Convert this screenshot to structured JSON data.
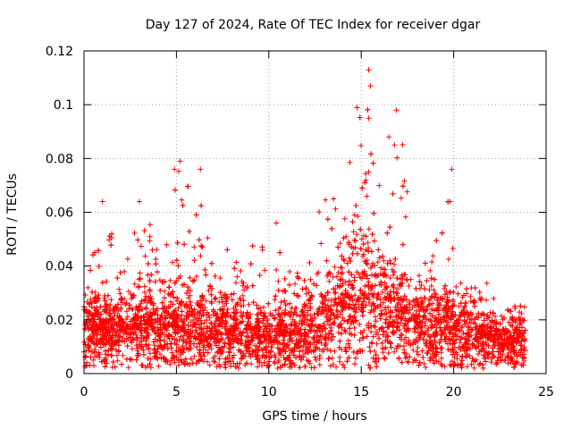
{
  "chart_data": {
    "type": "scatter",
    "title": "Day 127 of 2024, Rate Of TEC Index for receiver dgar",
    "xlabel": "GPS time / hours",
    "ylabel": "ROTI / TECUs",
    "xlim": [
      0,
      25
    ],
    "ylim": [
      0,
      0.12
    ],
    "x_ticks": [
      0,
      5,
      10,
      15,
      20,
      25
    ],
    "x_tick_labels": [
      "0",
      "5",
      "10",
      "15",
      "20",
      "25"
    ],
    "y_ticks": [
      0,
      0.02,
      0.04,
      0.06,
      0.08,
      0.1,
      0.12
    ],
    "y_tick_labels": [
      "0",
      "0.02",
      "0.04",
      "0.06",
      "0.08",
      "0.1",
      "0.12"
    ],
    "grid": true,
    "marker": "plus",
    "color": "#ff0000",
    "data_range_x": [
      0,
      23.9
    ],
    "envelope": {
      "description": "approximate upper/typical ROTI by hour",
      "x": [
        0,
        1,
        2,
        3,
        4,
        5,
        6,
        7,
        8,
        9,
        10,
        11,
        12,
        13,
        14,
        15,
        16,
        17,
        18,
        19,
        20,
        21,
        22,
        23,
        23.9
      ],
      "typical": [
        0.015,
        0.016,
        0.016,
        0.017,
        0.016,
        0.018,
        0.017,
        0.016,
        0.016,
        0.015,
        0.014,
        0.014,
        0.015,
        0.018,
        0.024,
        0.03,
        0.025,
        0.021,
        0.018,
        0.017,
        0.016,
        0.015,
        0.013,
        0.012,
        0.012
      ],
      "upper": [
        0.028,
        0.064,
        0.04,
        0.064,
        0.05,
        0.08,
        0.076,
        0.046,
        0.048,
        0.05,
        0.056,
        0.038,
        0.045,
        0.066,
        0.065,
        0.114,
        0.086,
        0.098,
        0.052,
        0.05,
        0.076,
        0.04,
        0.034,
        0.024,
        0.027
      ]
    },
    "notable_points": [
      {
        "x": 1.0,
        "y": 0.064
      },
      {
        "x": 3.0,
        "y": 0.064
      },
      {
        "x": 3.7,
        "y": 0.046
      },
      {
        "x": 4.9,
        "y": 0.076
      },
      {
        "x": 5.2,
        "y": 0.079
      },
      {
        "x": 6.3,
        "y": 0.076
      },
      {
        "x": 10.4,
        "y": 0.056
      },
      {
        "x": 13.5,
        "y": 0.065
      },
      {
        "x": 15.4,
        "y": 0.113
      },
      {
        "x": 15.5,
        "y": 0.107
      },
      {
        "x": 15.4,
        "y": 0.095
      },
      {
        "x": 16.5,
        "y": 0.088
      },
      {
        "x": 16.9,
        "y": 0.098
      },
      {
        "x": 16.8,
        "y": 0.085
      },
      {
        "x": 19.9,
        "y": 0.076
      },
      {
        "x": 19.8,
        "y": 0.064
      }
    ]
  }
}
